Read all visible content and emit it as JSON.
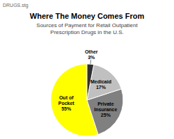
{
  "chart_data": {
    "type": "pie",
    "title": "Where The Money Comes From",
    "subtitle": "Sources of Payment for Retail Outpatient\nPrescription Drugs in the U.S.",
    "annotations": [
      "DRUGS.stg"
    ],
    "categories": [
      "Out of\nPocket",
      "Private\nInsurance",
      "Medicaid",
      "Other"
    ],
    "values": [
      55,
      25,
      17,
      3
    ],
    "value_labels": [
      "55%",
      "25%",
      "17%",
      "3%"
    ],
    "colors": [
      "#FFFF00",
      "#808080",
      "#C0C0C0",
      "#303030"
    ],
    "data_labels": true
  }
}
